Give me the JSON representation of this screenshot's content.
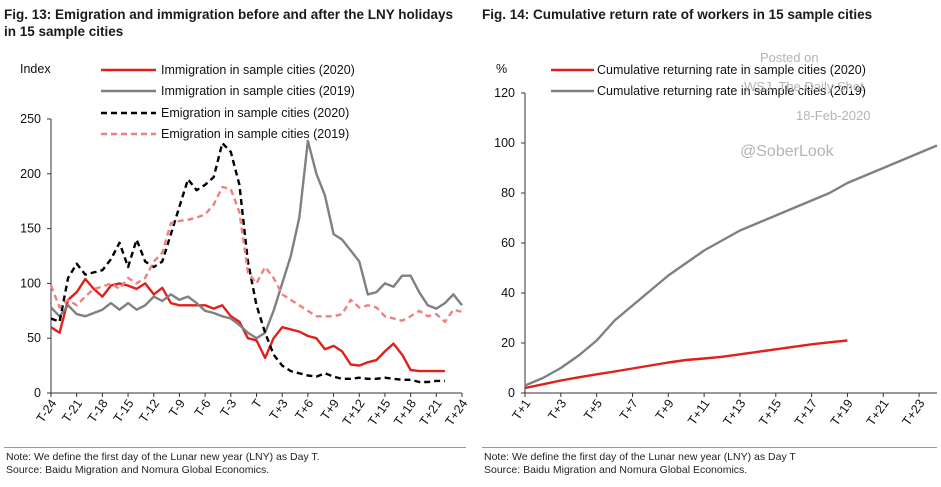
{
  "left": {
    "title": "Fig. 13: Emigration and immigration before and after the LNY holidays in 15 sample cities",
    "note_line1": "Note: We define the first day of the Lunar new year (LNY) as Day T.",
    "note_line2": "Source: Baidu Migration and Nomura Global Economics."
  },
  "right": {
    "title": "Fig. 14: Cumulative return rate of workers in 15 sample cities",
    "note_line1": "Note: We define the first day of the Lunar new year (LNY) as Day T",
    "note_line2": "Source: Baidu Migration and Nomura Global Economics."
  },
  "watermark": {
    "line1": "Posted on",
    "line2": "WSJ, The Daily Shot",
    "line3": "18-Feb-2020",
    "line4": "@SoberLook"
  },
  "colors": {
    "red": "#e0201b",
    "gray": "#808080",
    "black": "#000000",
    "pink": "#f08080",
    "axis": "#333333"
  },
  "chart_data": [
    {
      "type": "line",
      "title": "Fig. 13: Emigration and immigration before and after the LNY holidays in 15 sample cities",
      "ylabel": "Index",
      "ylim": [
        0,
        250
      ],
      "yticks": [
        0,
        50,
        100,
        150,
        200,
        250
      ],
      "x_day_range": [
        -24,
        24
      ],
      "xtick_days": [
        -24,
        -21,
        -18,
        -15,
        -12,
        -9,
        -6,
        -3,
        0,
        3,
        6,
        9,
        12,
        15,
        18,
        21,
        24
      ],
      "xtick_labels": [
        "T-24",
        "T-21",
        "T-18",
        "T-15",
        "T-12",
        "T-9",
        "T-6",
        "T-3",
        "T",
        "T+3",
        "T+6",
        "T+9",
        "T+12",
        "T+15",
        "T+18",
        "T+21",
        "T+24"
      ],
      "series": [
        {
          "name": "Immigration in sample cities (2020)",
          "style": "solid",
          "color": "red",
          "x": [
            -24,
            -23,
            -22,
            -21,
            -20,
            -19,
            -18,
            -17,
            -16,
            -15,
            -14,
            -13,
            -12,
            -11,
            -10,
            -9,
            -8,
            -7,
            -6,
            -5,
            -4,
            -3,
            -2,
            -1,
            0,
            1,
            2,
            3,
            4,
            5,
            6,
            7,
            8,
            9,
            10,
            11,
            12,
            13,
            14,
            15,
            16,
            17,
            18,
            19,
            20,
            21,
            22
          ],
          "values": [
            60,
            55,
            85,
            92,
            104,
            95,
            88,
            98,
            100,
            98,
            95,
            100,
            90,
            96,
            82,
            80,
            80,
            80,
            80,
            77,
            80,
            70,
            65,
            50,
            48,
            32,
            50,
            60,
            58,
            56,
            52,
            50,
            40,
            43,
            38,
            26,
            25,
            28,
            30,
            38,
            45,
            35,
            21,
            20,
            20,
            20,
            20
          ]
        },
        {
          "name": "Immigration in sample cities (2019)",
          "style": "solid",
          "color": "gray",
          "x": [
            -24,
            -23,
            -22,
            -21,
            -20,
            -19,
            -18,
            -17,
            -16,
            -15,
            -14,
            -13,
            -12,
            -11,
            -10,
            -9,
            -8,
            -7,
            -6,
            -5,
            -4,
            -3,
            -2,
            -1,
            0,
            1,
            2,
            3,
            4,
            5,
            6,
            7,
            8,
            9,
            10,
            11,
            12,
            13,
            14,
            15,
            16,
            17,
            18,
            19,
            20,
            21,
            22,
            23,
            24
          ],
          "values": [
            78,
            70,
            80,
            72,
            70,
            73,
            76,
            82,
            76,
            82,
            76,
            80,
            88,
            84,
            90,
            85,
            88,
            82,
            75,
            73,
            70,
            68,
            62,
            55,
            50,
            55,
            75,
            100,
            125,
            160,
            230,
            200,
            180,
            145,
            140,
            130,
            120,
            90,
            92,
            100,
            97,
            107,
            107,
            92,
            80,
            77,
            82,
            90,
            80
          ]
        },
        {
          "name": "Emigration in sample cities (2020)",
          "style": "dashed",
          "color": "black",
          "x": [
            -24,
            -23,
            -22,
            -21,
            -20,
            -19,
            -18,
            -17,
            -16,
            -15,
            -14,
            -13,
            -12,
            -11,
            -10,
            -9,
            -8,
            -7,
            -6,
            -5,
            -4,
            -3,
            -2,
            -1,
            0,
            1,
            2,
            3,
            4,
            5,
            6,
            7,
            8,
            9,
            10,
            11,
            12,
            13,
            14,
            15,
            16,
            17,
            18,
            19,
            20,
            21,
            22
          ],
          "values": [
            68,
            65,
            105,
            118,
            108,
            110,
            112,
            122,
            137,
            115,
            140,
            120,
            115,
            120,
            145,
            170,
            195,
            185,
            190,
            197,
            228,
            220,
            190,
            120,
            80,
            55,
            35,
            25,
            20,
            18,
            16,
            15,
            18,
            15,
            13,
            13,
            14,
            13,
            13,
            14,
            13,
            12,
            12,
            10,
            10,
            11,
            11
          ]
        },
        {
          "name": "Emigration in sample cities (2019)",
          "style": "dashed",
          "color": "pink",
          "x": [
            -24,
            -23,
            -22,
            -21,
            -20,
            -19,
            -18,
            -17,
            -16,
            -15,
            -14,
            -13,
            -12,
            -11,
            -10,
            -9,
            -8,
            -7,
            -6,
            -5,
            -4,
            -3,
            -2,
            -1,
            0,
            1,
            2,
            3,
            4,
            5,
            6,
            7,
            8,
            9,
            10,
            11,
            12,
            13,
            14,
            15,
            16,
            17,
            18,
            19,
            20,
            21,
            22,
            23,
            24
          ],
          "values": [
            98,
            78,
            85,
            80,
            88,
            95,
            97,
            100,
            95,
            105,
            100,
            105,
            120,
            128,
            155,
            157,
            158,
            160,
            163,
            172,
            188,
            186,
            165,
            110,
            100,
            115,
            105,
            90,
            85,
            80,
            75,
            70,
            70,
            70,
            72,
            85,
            78,
            80,
            78,
            70,
            68,
            66,
            70,
            75,
            70,
            72,
            65,
            76,
            74
          ]
        }
      ]
    },
    {
      "type": "line",
      "title": "Fig. 14: Cumulative return rate of workers in 15 sample cities",
      "ylabel": "%",
      "ylim": [
        0,
        120
      ],
      "yticks": [
        0,
        20,
        40,
        60,
        80,
        100,
        120
      ],
      "x_day_range": [
        1,
        24
      ],
      "xtick_days": [
        1,
        3,
        5,
        7,
        9,
        11,
        13,
        15,
        17,
        19,
        21,
        23
      ],
      "xtick_labels": [
        "T+1",
        "T+3",
        "T+5",
        "T+7",
        "T+9",
        "T+11",
        "T+13",
        "T+15",
        "T+17",
        "T+19",
        "T+21",
        "T+23"
      ],
      "series": [
        {
          "name": "Cumulative returning rate in sample cities (2020)",
          "style": "solid",
          "color": "red",
          "x": [
            1,
            2,
            3,
            4,
            5,
            6,
            7,
            8,
            9,
            10,
            11,
            12,
            13,
            14,
            15,
            16,
            17,
            18,
            19
          ],
          "values": [
            2,
            3.5,
            5,
            6.3,
            7.5,
            8.6,
            9.8,
            11,
            12.2,
            13.2,
            13.8,
            14.5,
            15.5,
            16.5,
            17.5,
            18.5,
            19.5,
            20.3,
            21
          ]
        },
        {
          "name": "Cumulative returning rate in sample cities (2019)",
          "style": "solid",
          "color": "gray",
          "x": [
            1,
            2,
            3,
            4,
            5,
            6,
            7,
            8,
            9,
            10,
            11,
            12,
            13,
            14,
            15,
            16,
            17,
            18,
            19,
            20,
            21,
            22,
            23,
            24
          ],
          "values": [
            3,
            6,
            10,
            15,
            21,
            29,
            35,
            41,
            47,
            52,
            57,
            61,
            65,
            68,
            71,
            74,
            77,
            80,
            84,
            87,
            90,
            93,
            96,
            99
          ]
        }
      ]
    }
  ]
}
